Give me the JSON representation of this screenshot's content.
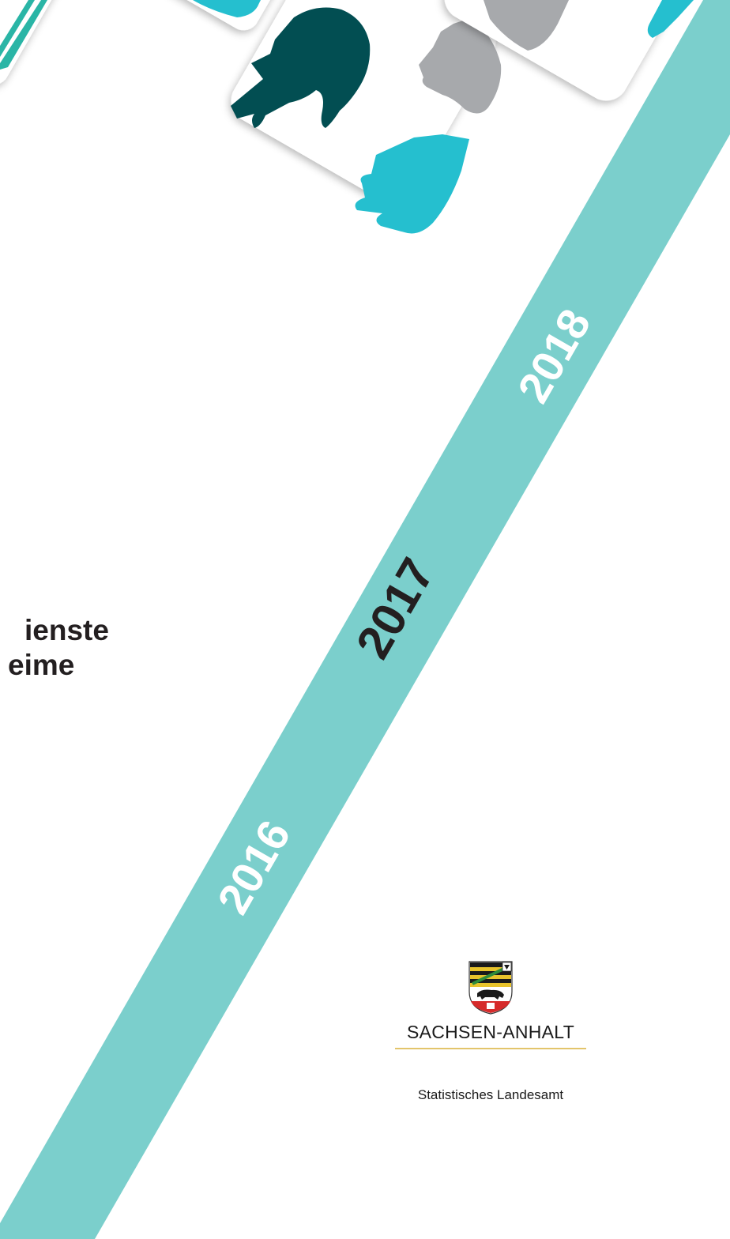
{
  "colors": {
    "ribbon": "#7bcfcc",
    "hand_dark": "#024e52",
    "hand_cyan": "#25bfcf",
    "hand_gray": "#a7a9ac",
    "hand_teal": "#2ab5a6",
    "year_light": "#ffffff",
    "year_dark": "#231f20",
    "title_text": "#231f20",
    "brand_rule": "#e3c56b"
  },
  "cover_title": {
    "line1": "ienste",
    "line2": "eime"
  },
  "ribbon_years": {
    "early": "2016",
    "current": "2017",
    "late": "2018"
  },
  "publisher": {
    "state_name": "SACHSEN-ANHALT",
    "office_name": "Statistisches Landesamt"
  },
  "icons": {
    "hands_tile": "hands-photo-tile",
    "coat_of_arms": "coat-of-arms-icon"
  }
}
